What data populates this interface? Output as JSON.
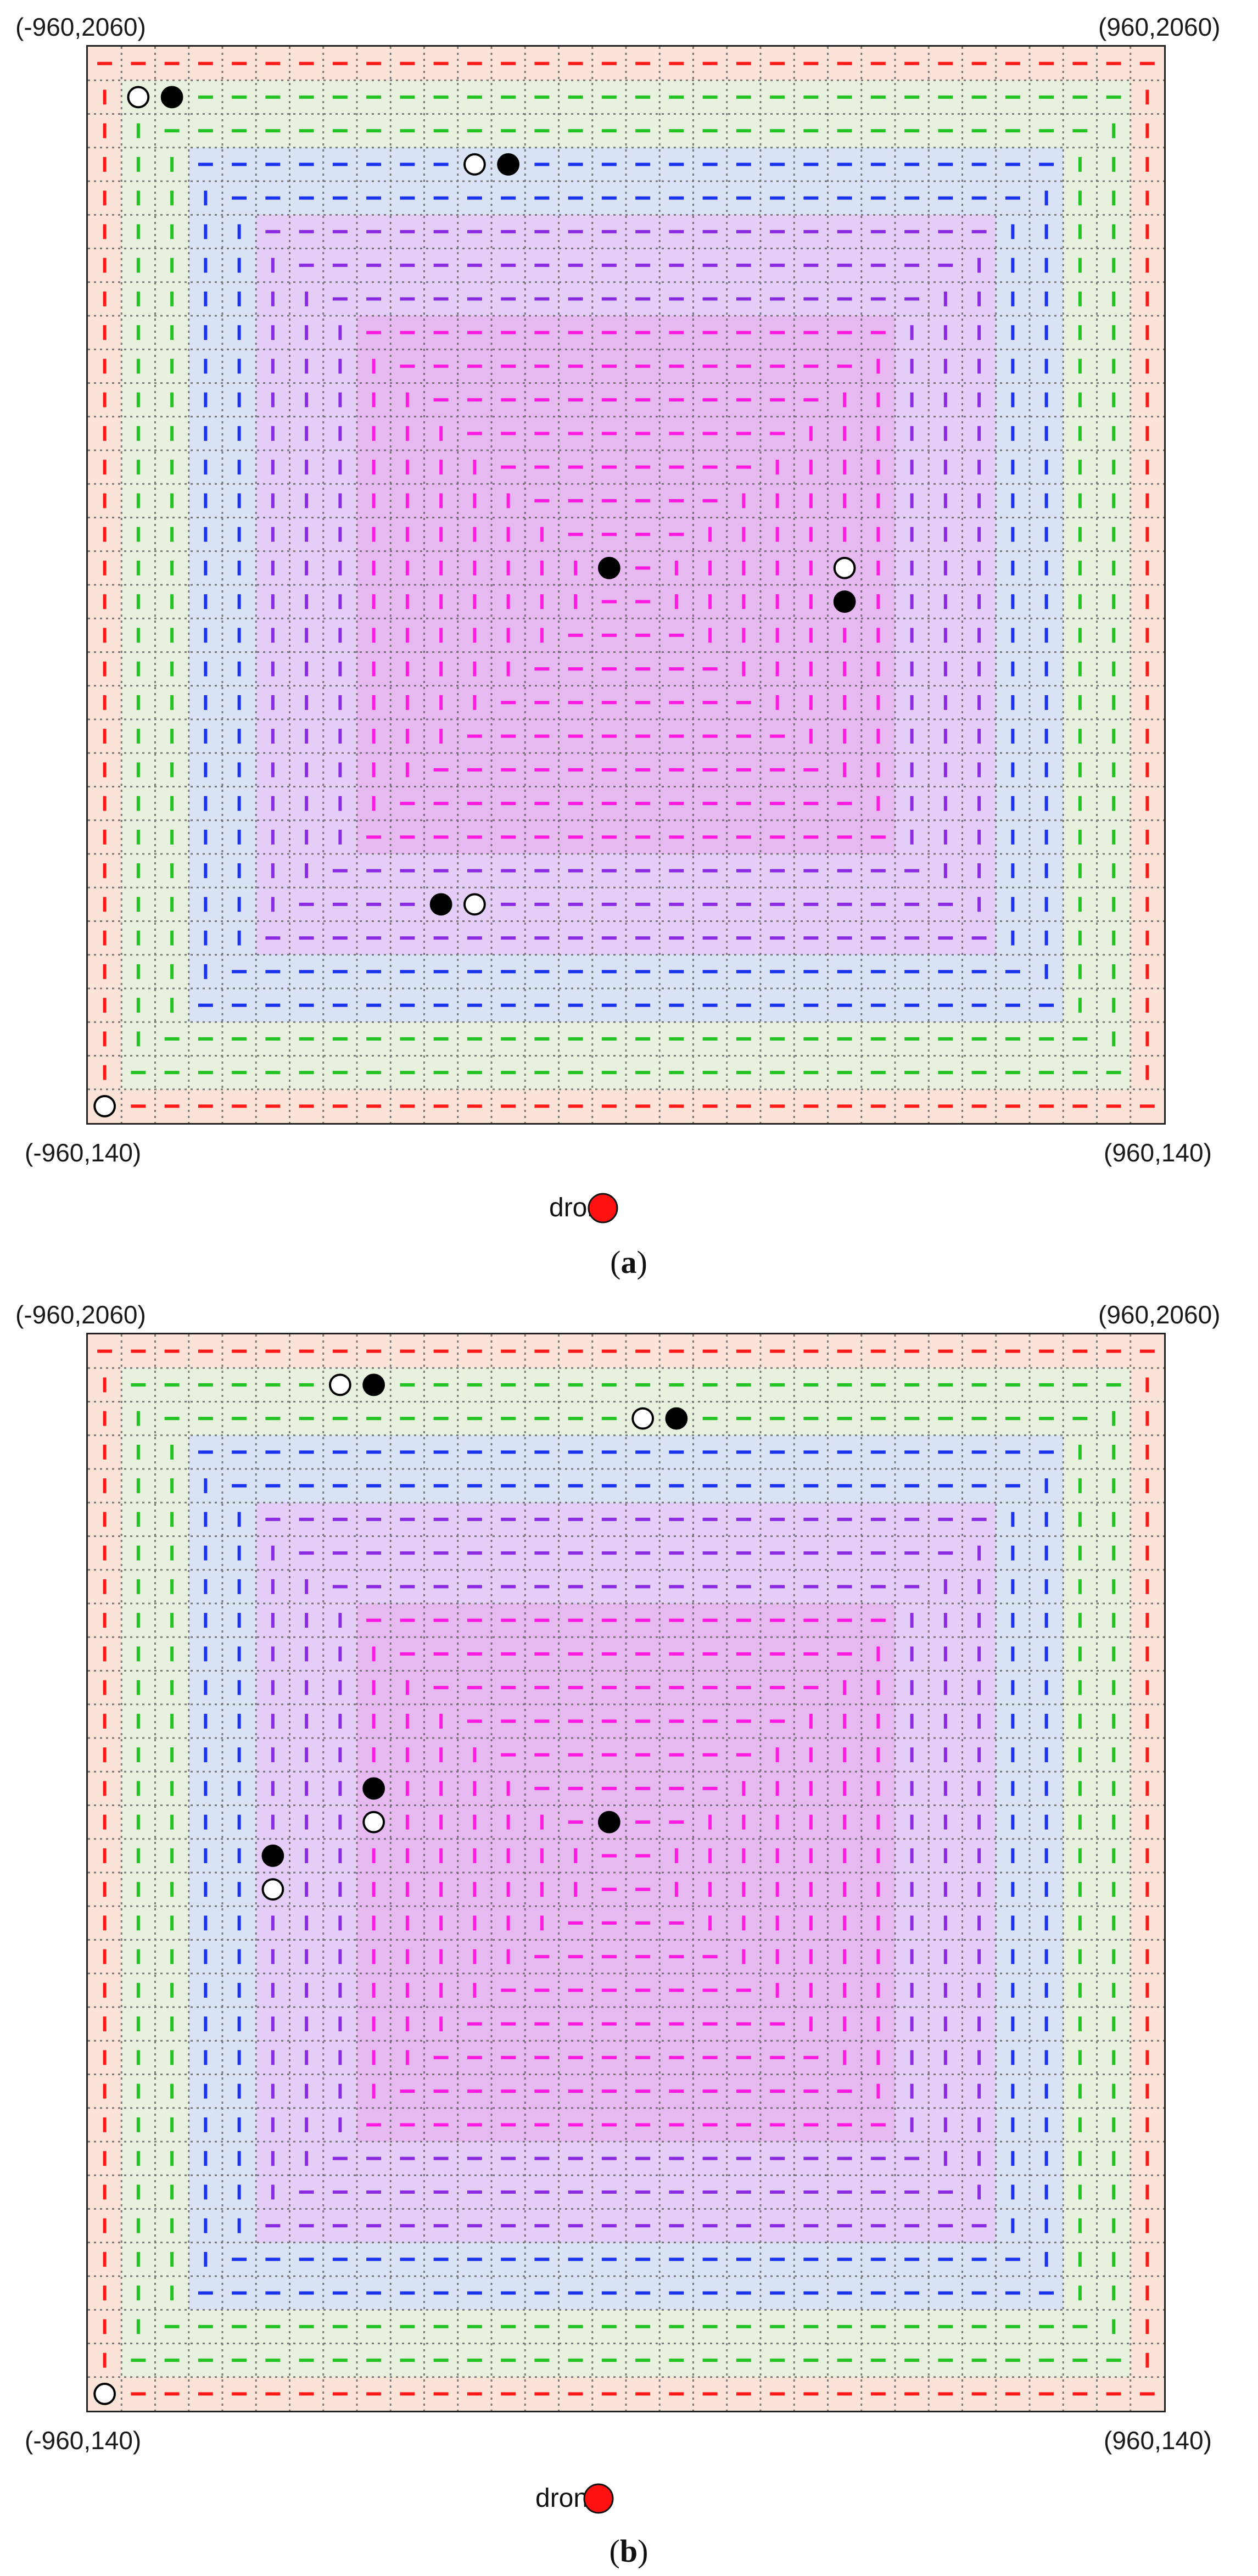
{
  "panels": [
    {
      "id": "a",
      "caption": "a",
      "corner_labels": {
        "top_left": "(-960,2060)",
        "top_right": "(960,2060)",
        "bottom_left": "(-960,140)",
        "bottom_right": "(960,140)"
      },
      "drone_label": "drone",
      "markers": [
        {
          "kind": "white",
          "col": 0,
          "row": 31
        },
        {
          "kind": "white",
          "col": 1,
          "row": 1
        },
        {
          "kind": "black",
          "col": 2,
          "row": 1
        },
        {
          "kind": "white",
          "col": 11,
          "row": 3
        },
        {
          "kind": "black",
          "col": 12,
          "row": 3
        },
        {
          "kind": "black",
          "col": 15,
          "row": 15
        },
        {
          "kind": "white",
          "col": 22,
          "row": 15
        },
        {
          "kind": "black",
          "col": 22,
          "row": 16
        },
        {
          "kind": "black",
          "col": 10,
          "row": 25
        },
        {
          "kind": "white",
          "col": 11,
          "row": 25
        }
      ]
    },
    {
      "id": "b",
      "caption": "b",
      "corner_labels": {
        "top_left": "(-960,2060)",
        "top_right": "(960,2060)",
        "bottom_left": "(-960,140)",
        "bottom_right": "(960,140)"
      },
      "drone_label": "drone",
      "markers": [
        {
          "kind": "white",
          "col": 0,
          "row": 31
        },
        {
          "kind": "white",
          "col": 7,
          "row": 1
        },
        {
          "kind": "black",
          "col": 8,
          "row": 1
        },
        {
          "kind": "white",
          "col": 16,
          "row": 2
        },
        {
          "kind": "black",
          "col": 17,
          "row": 2
        },
        {
          "kind": "black",
          "col": 8,
          "row": 13
        },
        {
          "kind": "white",
          "col": 8,
          "row": 14
        },
        {
          "kind": "black",
          "col": 15,
          "row": 14
        },
        {
          "kind": "black",
          "col": 5,
          "row": 15
        },
        {
          "kind": "white",
          "col": 5,
          "row": 16
        }
      ]
    }
  ],
  "grid": {
    "cols": 32,
    "rows": 32
  },
  "region_colors": {
    "red": {
      "fill": "#fbe3d8",
      "line": "#ff1a1a"
    },
    "green": {
      "fill": "#e7f1de",
      "line": "#22c322"
    },
    "blue": {
      "fill": "#d9e3f5",
      "line": "#1a33ee"
    },
    "violet": {
      "fill": "#e4cdf6",
      "line": "#8a2be2"
    },
    "magenta": {
      "fill": "#e6b9f0",
      "line": "#ff1ae0"
    }
  },
  "drone_color": "#ff1111"
}
